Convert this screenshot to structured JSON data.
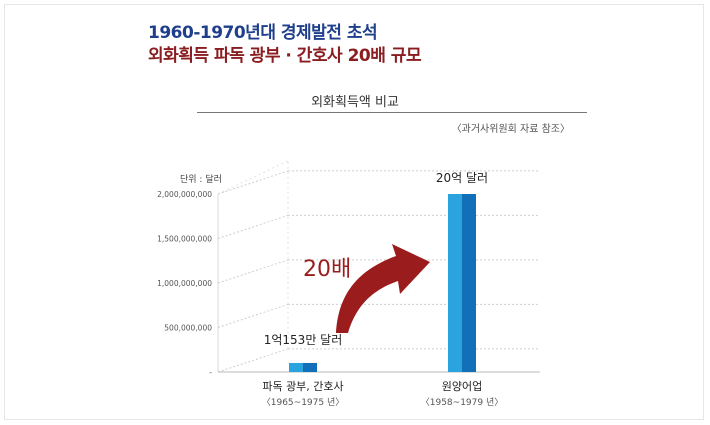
{
  "header": {
    "line1": "1960-1970년대 경제발전 초석",
    "line2": "외화획득 파독 광부 · 간호사 20배 규모"
  },
  "source_note": "〈과거사위원회 자료 참조〉",
  "colors": {
    "title_blue": "#1f3f8c",
    "title_red": "#8a1d20",
    "bar_light": "#2aa3df",
    "bar_dark": "#1170b8",
    "arrow": "#9b1c1c"
  },
  "chart_data": {
    "type": "bar",
    "title": "외화획득액 비교",
    "unit_label": "단위 : 달러",
    "categories": [
      "파독 광부, 간호사",
      "원양어업"
    ],
    "category_periods": [
      "〈1965~1975 년〉",
      "〈1958~1979 년〉"
    ],
    "values": [
      101530000,
      2000000000
    ],
    "data_labels": [
      "1억153만 달러",
      "20억 달러"
    ],
    "ylim": [
      0,
      2000000000
    ],
    "yticks": [
      0,
      500000000,
      1000000000,
      1500000000,
      2000000000
    ],
    "ytick_labels": [
      "-",
      "500,000,000",
      "1,000,000,000",
      "1,500,000,000",
      "2,000,000,000"
    ],
    "grid": true,
    "annotation": "20배"
  }
}
